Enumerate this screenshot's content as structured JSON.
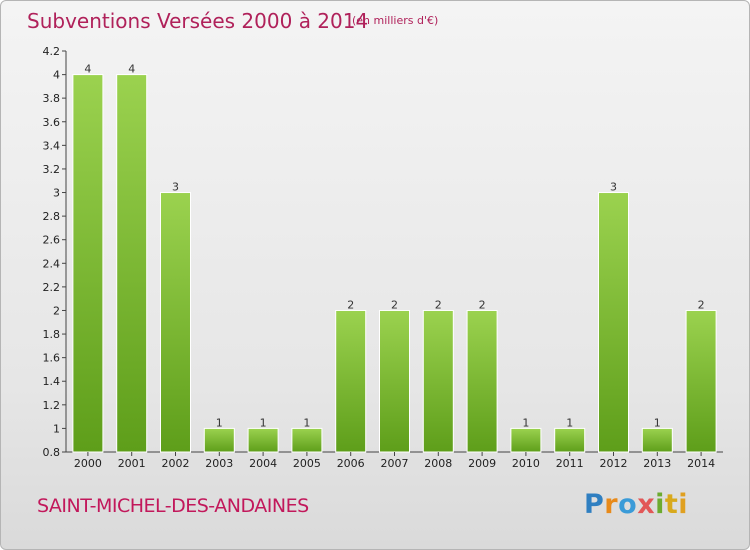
{
  "title": "Subventions Versées 2000 à 2014",
  "subtitle": "(en milliers d'€)",
  "commune": "SAINT-MICHEL-DES-ANDAINES",
  "logo": {
    "p": "P",
    "r": "r",
    "o": "o",
    "x": "x",
    "i1": "i",
    "t": "t",
    "i2": "i"
  },
  "colors": {
    "bar_light": "#9bd24f",
    "bar_dark": "#5e9e1a",
    "title": "#b0215a"
  },
  "chart_data": {
    "type": "bar",
    "categories": [
      "2000",
      "2001",
      "2002",
      "2003",
      "2004",
      "2005",
      "2006",
      "2007",
      "2008",
      "2009",
      "2010",
      "2011",
      "2012",
      "2013",
      "2014"
    ],
    "values": [
      4,
      4,
      3,
      1,
      1,
      1,
      2,
      2,
      2,
      2,
      1,
      1,
      3,
      1,
      2
    ],
    "ylim": [
      0.8,
      4.2
    ],
    "yticks": [
      "0.8",
      "1",
      "1.2",
      "1.4",
      "1.6",
      "1.8",
      "2",
      "2.2",
      "2.4",
      "2.6",
      "2.8",
      "3",
      "3.2",
      "3.4",
      "3.6",
      "3.8",
      "4",
      "4.2"
    ],
    "grid": false
  }
}
